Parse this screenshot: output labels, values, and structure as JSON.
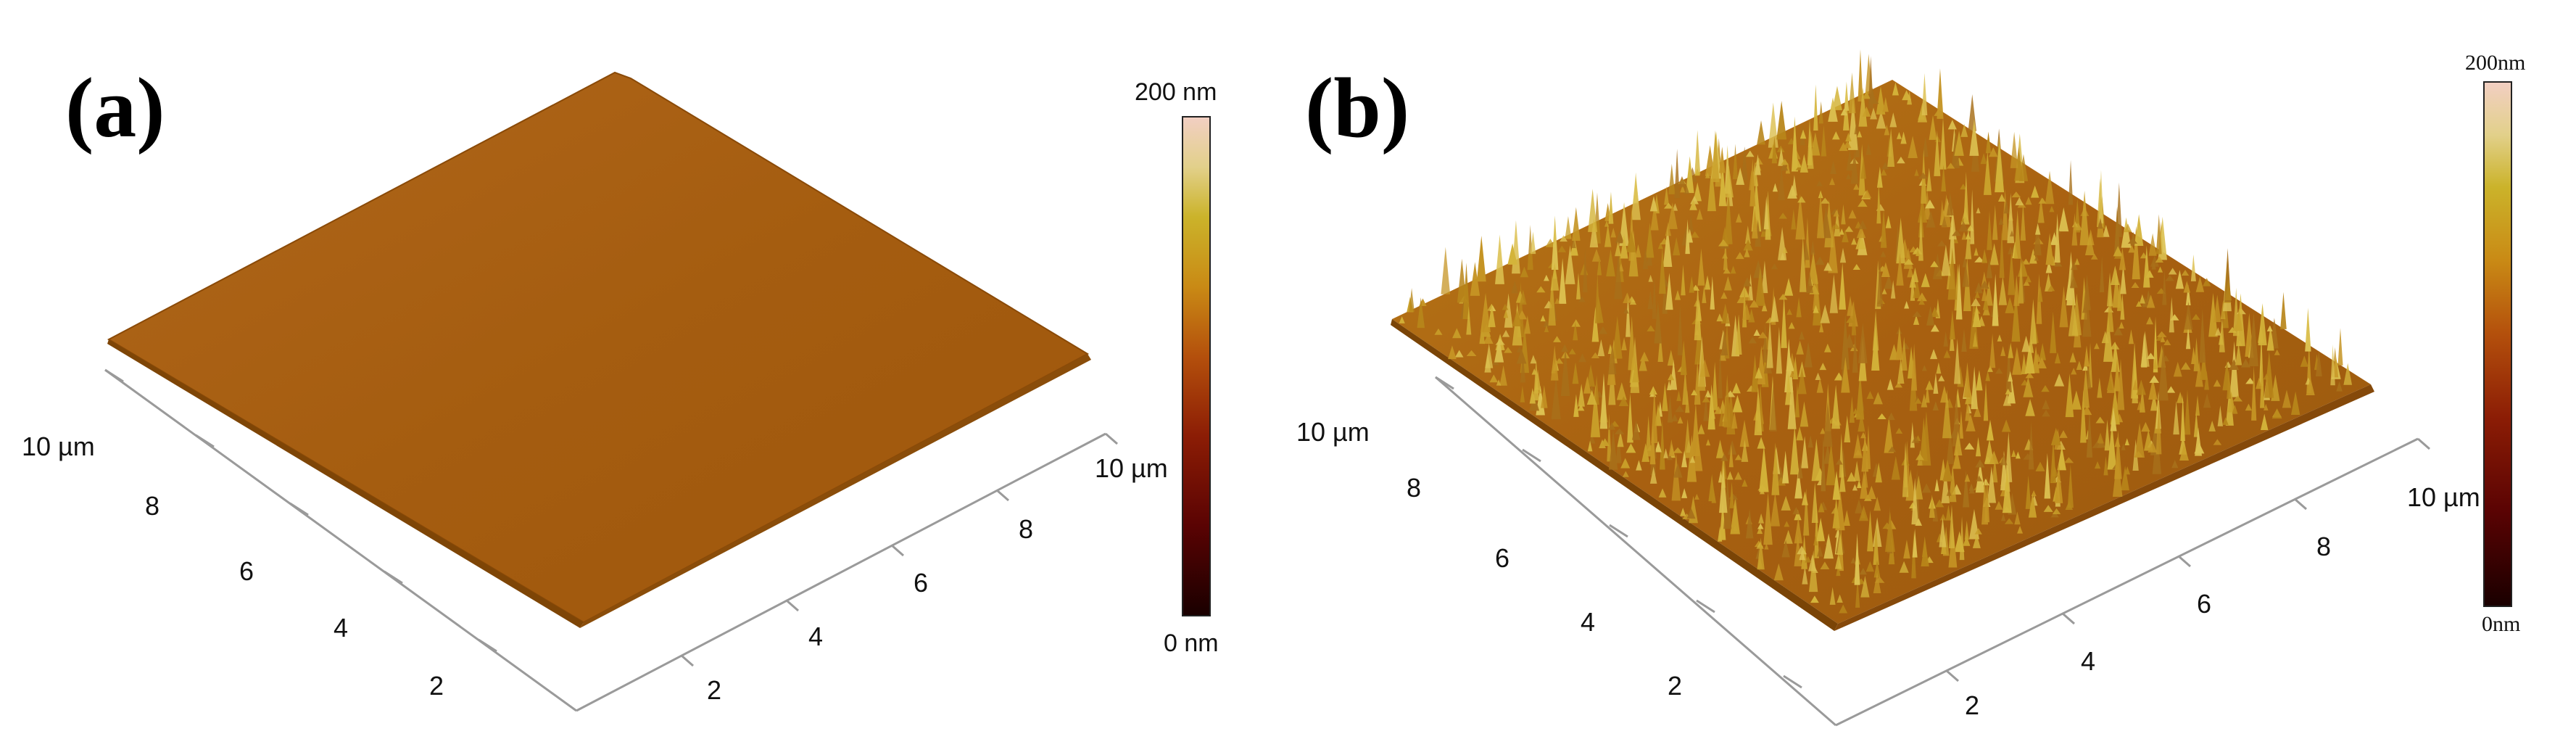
{
  "panel_a": {
    "label": "(a)",
    "scale_max": "200 nm",
    "scale_min": "0 nm",
    "axis_y_label": "10 µm",
    "axis_y_ticks": [
      "8",
      "6",
      "4",
      "2"
    ],
    "axis_x_label": "10 µm",
    "axis_x_ticks": [
      "8",
      "6",
      "4",
      "2"
    ],
    "surface": "smooth"
  },
  "panel_b": {
    "label": "(b)",
    "scale_max": "200nm",
    "scale_min": "0nm",
    "axis_y_label": "10 µm",
    "axis_y_ticks": [
      "8",
      "6",
      "4",
      "2"
    ],
    "axis_x_label": "10 µm",
    "axis_x_ticks": [
      "8",
      "6",
      "4",
      "2"
    ],
    "surface": "rough"
  },
  "colors": {
    "surface_base": "#a85f10",
    "surface_light": "#c8a020",
    "axis_line": "#9a9a9a"
  }
}
